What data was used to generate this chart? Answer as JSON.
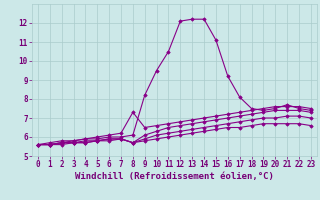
{
  "xlabel": "Windchill (Refroidissement éolien,°C)",
  "background_color": "#cce8e8",
  "grid_color": "#aacccc",
  "line_color": "#880088",
  "x_values": [
    0,
    1,
    2,
    3,
    4,
    5,
    6,
    7,
    8,
    9,
    10,
    11,
    12,
    13,
    14,
    15,
    16,
    17,
    18,
    19,
    20,
    21,
    22,
    23
  ],
  "series": [
    [
      5.6,
      5.7,
      5.8,
      5.8,
      5.9,
      5.9,
      6.0,
      6.0,
      6.1,
      8.2,
      9.5,
      10.5,
      12.1,
      12.2,
      12.2,
      11.1,
      9.2,
      8.1,
      7.5,
      7.4,
      7.5,
      7.7,
      7.5,
      7.4
    ],
    [
      5.6,
      5.6,
      5.7,
      5.8,
      5.9,
      6.0,
      6.1,
      6.2,
      7.3,
      6.5,
      6.6,
      6.7,
      6.8,
      6.9,
      7.0,
      7.1,
      7.2,
      7.3,
      7.4,
      7.5,
      7.6,
      7.6,
      7.6,
      7.5
    ],
    [
      5.6,
      5.6,
      5.7,
      5.7,
      5.8,
      5.8,
      5.9,
      5.9,
      5.7,
      6.1,
      6.3,
      6.5,
      6.6,
      6.7,
      6.8,
      6.9,
      7.0,
      7.1,
      7.2,
      7.3,
      7.4,
      7.4,
      7.4,
      7.3
    ],
    [
      5.6,
      5.6,
      5.7,
      5.7,
      5.7,
      5.8,
      5.9,
      5.9,
      5.7,
      5.9,
      6.1,
      6.2,
      6.3,
      6.4,
      6.5,
      6.6,
      6.7,
      6.8,
      6.9,
      7.0,
      7.0,
      7.1,
      7.1,
      7.0
    ],
    [
      5.6,
      5.6,
      5.6,
      5.7,
      5.7,
      5.8,
      5.8,
      5.9,
      5.7,
      5.8,
      5.9,
      6.0,
      6.1,
      6.2,
      6.3,
      6.4,
      6.5,
      6.5,
      6.6,
      6.7,
      6.7,
      6.7,
      6.7,
      6.6
    ]
  ],
  "ylim": [
    5,
    13
  ],
  "xlim": [
    -0.5,
    23.5
  ],
  "yticks": [
    5,
    6,
    7,
    8,
    9,
    10,
    11,
    12
  ],
  "xticks": [
    0,
    1,
    2,
    3,
    4,
    5,
    6,
    7,
    8,
    9,
    10,
    11,
    12,
    13,
    14,
    15,
    16,
    17,
    18,
    19,
    20,
    21,
    22,
    23
  ],
  "marker": "D",
  "marker_size": 1.8,
  "line_width": 0.8,
  "xlabel_fontsize": 6.5,
  "tick_fontsize": 5.5,
  "tick_color": "#770077"
}
